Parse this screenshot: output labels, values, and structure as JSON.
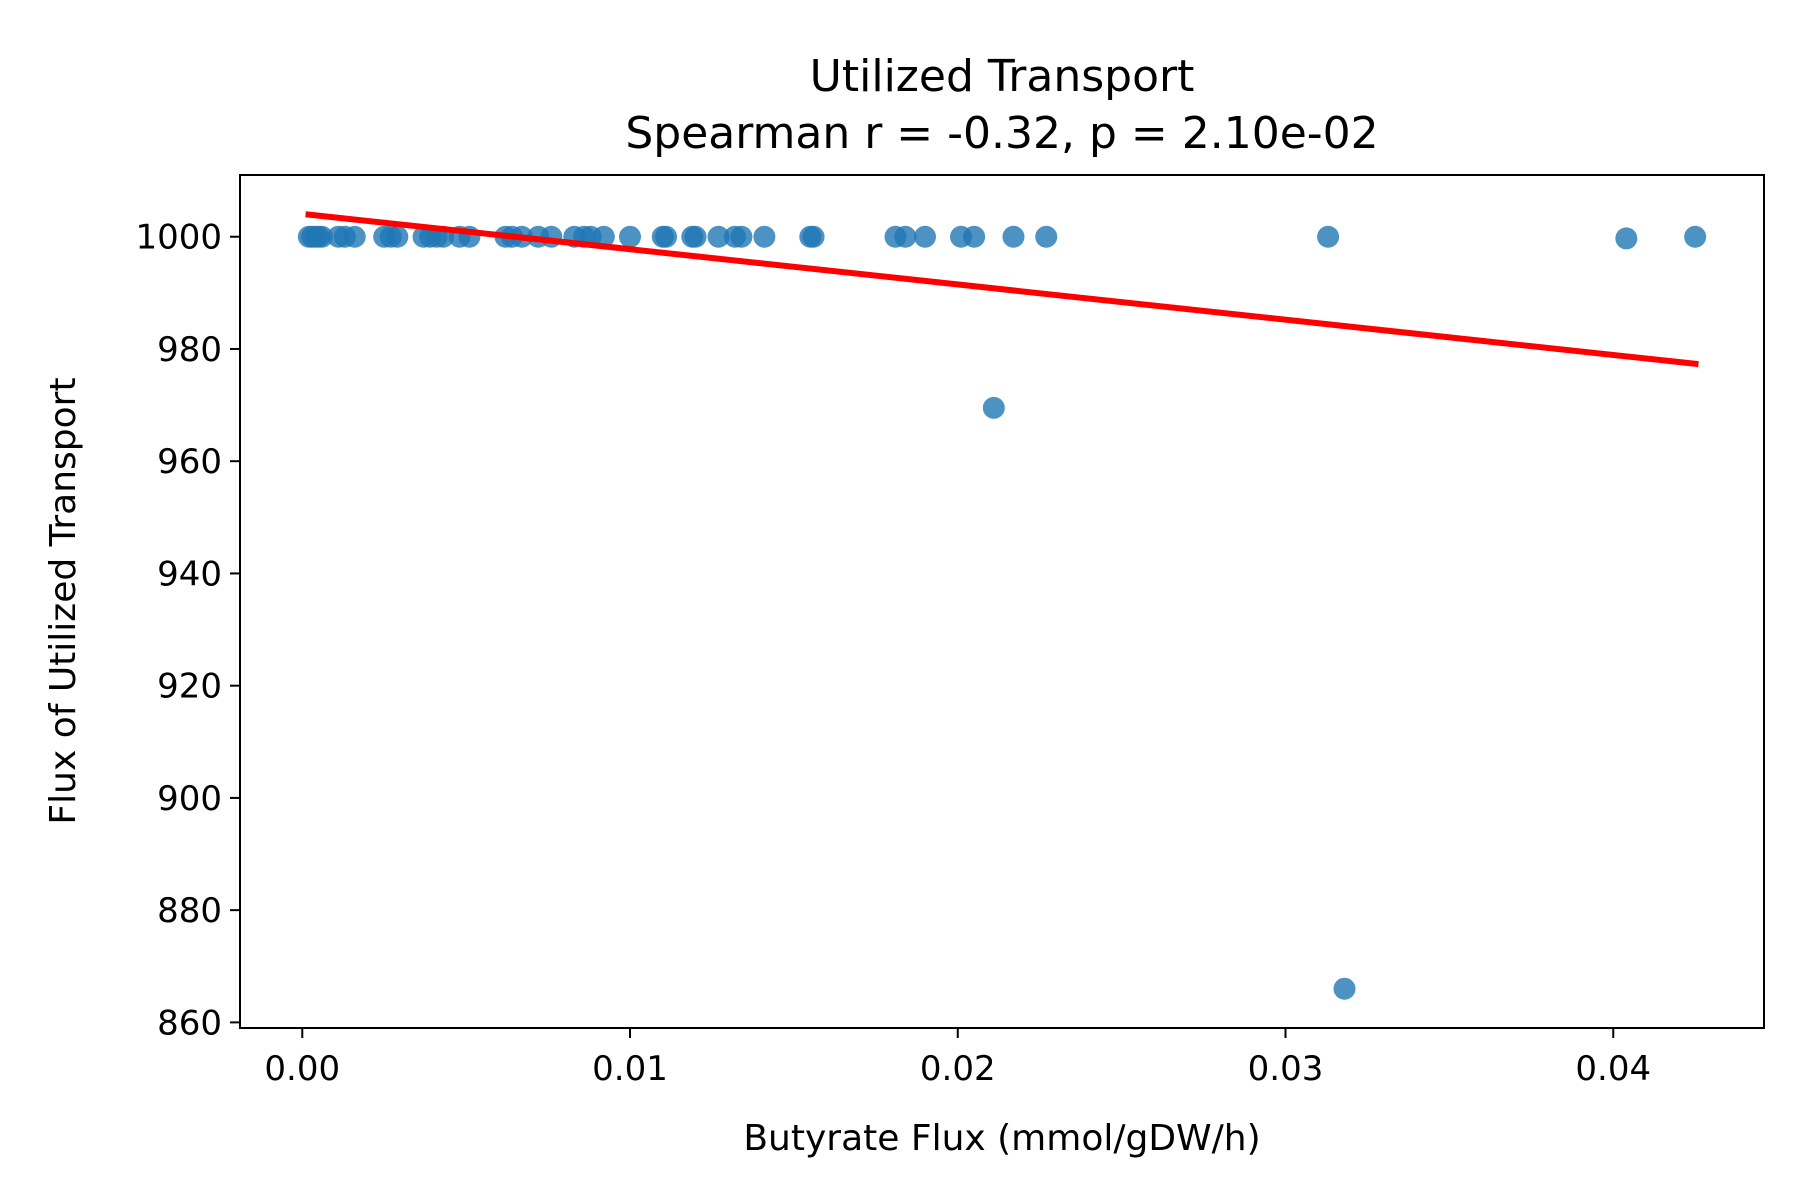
{
  "chart_data": {
    "type": "scatter",
    "title": "Utilized Transport",
    "subtitle": "Spearman r = -0.32, p = 2.10e-02",
    "xlabel": "Butyrate Flux (mmol/gDW/h)",
    "ylabel": "Flux of Utilized Transport",
    "xlim": [
      -0.0019,
      0.0446
    ],
    "ylim": [
      859,
      1011
    ],
    "xticks": [
      0.0,
      0.01,
      0.02,
      0.03,
      0.04
    ],
    "xtick_labels": [
      "0.00",
      "0.01",
      "0.02",
      "0.03",
      "0.04"
    ],
    "yticks": [
      860,
      880,
      900,
      920,
      940,
      960,
      980,
      1000
    ],
    "ytick_labels": [
      "860",
      "880",
      "900",
      "920",
      "940",
      "960",
      "980",
      "1000"
    ],
    "grid": false,
    "series": [
      {
        "kind": "points",
        "color": "#1f77b4",
        "x": [
          0.0002,
          0.0003,
          0.0004,
          0.0005,
          0.0006,
          0.0011,
          0.0013,
          0.0016,
          0.0025,
          0.0027,
          0.0029,
          0.0037,
          0.0039,
          0.0041,
          0.0043,
          0.0048,
          0.0051,
          0.0062,
          0.0064,
          0.0067,
          0.0072,
          0.0076,
          0.0083,
          0.0086,
          0.0088,
          0.0092,
          0.01,
          0.011,
          0.0111,
          0.0119,
          0.012,
          0.0127,
          0.0132,
          0.0134,
          0.0141,
          0.0155,
          0.0156,
          0.0181,
          0.0184,
          0.019,
          0.0201,
          0.0205,
          0.0211,
          0.0217,
          0.0227,
          0.0313,
          0.0318,
          0.0404,
          0.0425
        ],
        "y": [
          1000,
          1000,
          1000,
          1000,
          1000,
          1000,
          1000,
          1000,
          1000,
          1000,
          1000,
          1000,
          1000,
          1000,
          1000,
          1000,
          1000,
          1000,
          1000,
          1000,
          1000,
          1000,
          1000,
          1000,
          1000,
          1000,
          1000,
          1000,
          1000,
          1000,
          1000,
          1000,
          1000,
          1000,
          1000,
          1000,
          1000,
          1000,
          1000,
          1000,
          1000,
          1000,
          969.5,
          1000,
          1000,
          1000,
          866,
          999.7,
          1000
        ]
      },
      {
        "kind": "fit-line",
        "color": "#ff0000",
        "x": [
          0.0001,
          0.0426
        ],
        "y": [
          1004.0,
          977.3
        ]
      }
    ]
  }
}
